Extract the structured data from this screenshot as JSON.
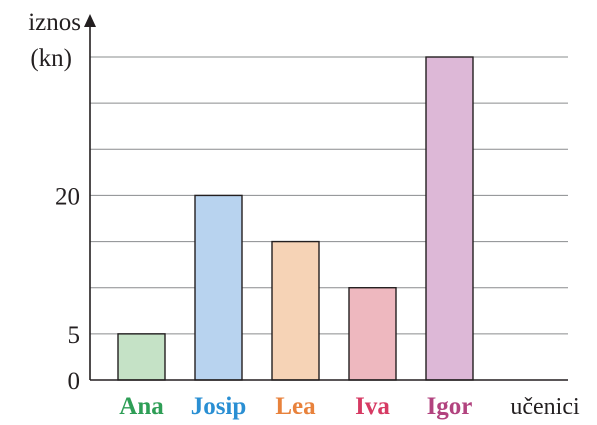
{
  "chart_data": {
    "type": "bar",
    "ylabel_line1": "iznos",
    "ylabel_line2": "(kn)",
    "xlabel": "učenici",
    "categories": [
      "Ana",
      "Josip",
      "Lea",
      "Iva",
      "Igor"
    ],
    "values": [
      5,
      20,
      15,
      10,
      35
    ],
    "ylim": [
      0,
      35
    ],
    "y_tick_labels": [
      "0",
      "5",
      "20"
    ],
    "y_tick_values": [
      0,
      5,
      20
    ],
    "gridline_step": 5,
    "grid": true,
    "bar_colors": [
      "#c5e2c6",
      "#b8d3ef",
      "#f6d3b6",
      "#eeb8bf",
      "#ddb8d7"
    ],
    "label_colors": [
      "#2e9e56",
      "#2a8fd3",
      "#e8823c",
      "#d63a63",
      "#b2437f"
    ]
  }
}
